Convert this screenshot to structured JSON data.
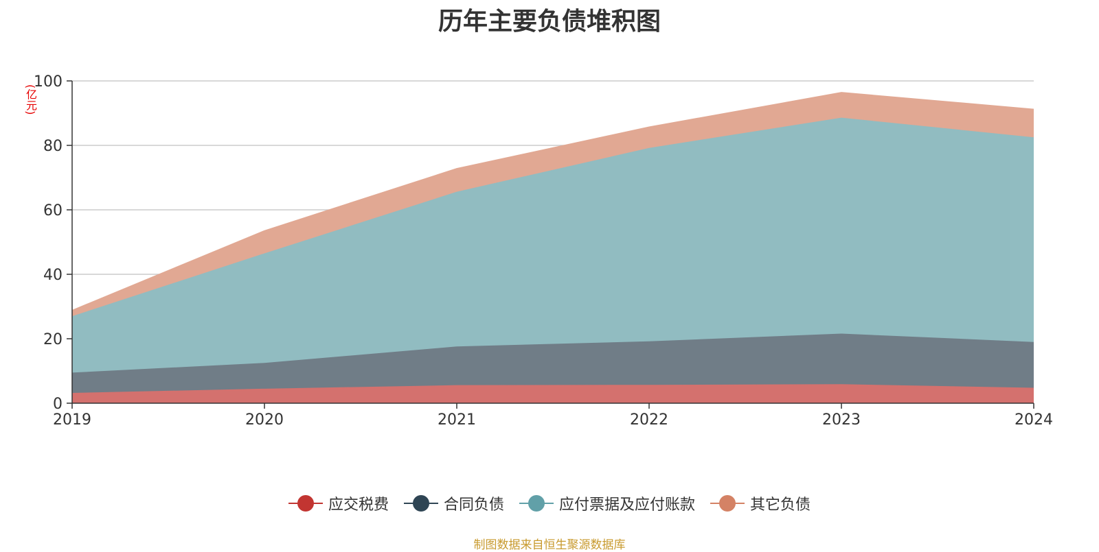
{
  "chart_data": {
    "type": "area",
    "stacked": true,
    "title": "历年主要负债堆积图",
    "ylabel": "(亿元)",
    "xlabel": "",
    "x": [
      "2019",
      "2020",
      "2021",
      "2022",
      "2023",
      "2024"
    ],
    "ylim": [
      0,
      100
    ],
    "yticks": [
      0,
      20,
      40,
      60,
      80,
      100
    ],
    "grid": true,
    "legend_position": "bottom",
    "series": [
      {
        "name": "应交税费",
        "color": "#c23531",
        "fill": "#d4716e",
        "values": [
          3.2,
          4.5,
          5.6,
          5.7,
          5.9,
          4.8
        ]
      },
      {
        "name": "合同负债",
        "color": "#2f4554",
        "fill": "#707d87",
        "values": [
          6.3,
          8.0,
          12.0,
          13.5,
          15.7,
          14.2
        ]
      },
      {
        "name": "应付票据及应付账款",
        "color": "#61a0a8",
        "fill": "#91bcc1",
        "values": [
          17.5,
          34.0,
          48.0,
          60.0,
          67.0,
          63.5
        ]
      },
      {
        "name": "其它负债",
        "color": "#d48265",
        "fill": "#e1a893",
        "values": [
          1.8,
          7.0,
          7.2,
          6.5,
          7.8,
          8.7
        ]
      }
    ]
  },
  "source": "制图数据来自恒生聚源数据库"
}
